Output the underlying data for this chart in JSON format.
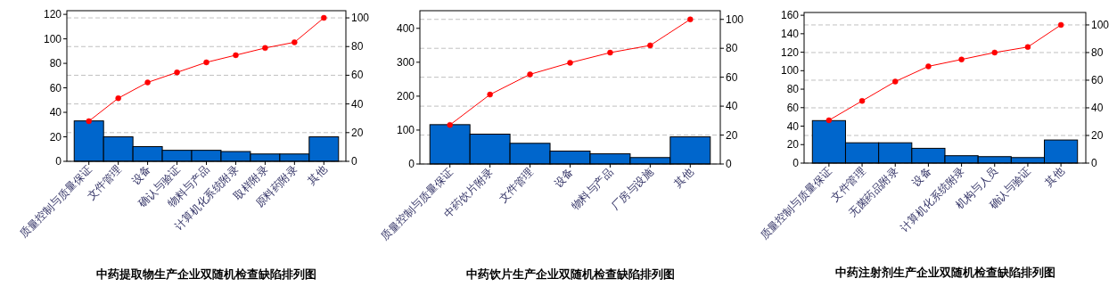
{
  "chart_data": [
    {
      "type": "bar",
      "title": "中药提取物生产企业双随机检查缺陷排列图",
      "categories": [
        "质量控制与质量保证",
        "文件管理",
        "设备",
        "确认与验证",
        "物料与产品",
        "计算机化系统附录",
        "取样附录",
        "原料药附录",
        "其他"
      ],
      "series": [
        {
          "color": "#0066cc",
          "values": [
            33,
            20,
            12,
            9,
            9,
            8,
            6,
            6,
            20
          ]
        },
        {
          "type": "line",
          "axis": "y2",
          "color": "#ff0000",
          "values": [
            28,
            44,
            55,
            62,
            69,
            74,
            79,
            83,
            100
          ]
        }
      ],
      "ylim": [
        0,
        123
      ],
      "yticks": [
        0,
        20,
        40,
        60,
        80,
        100,
        120
      ],
      "y2lim": [
        0,
        105
      ],
      "y2ticks": [
        0,
        20,
        40,
        60,
        80,
        100
      ],
      "grid": "y2",
      "marker": "circle",
      "line_style": "solid"
    },
    {
      "type": "bar",
      "title": "中药饮片生产企业双随机检查缺陷排列图",
      "categories": [
        "质量控制与质量保证",
        "中药饮片附录",
        "文件管理",
        "设备",
        "物料与产品",
        "厂房与设施",
        "其他"
      ],
      "series": [
        {
          "color": "#0066cc",
          "values": [
            116,
            88,
            61,
            38,
            30,
            19,
            80
          ]
        },
        {
          "type": "line",
          "axis": "y2",
          "color": "#ff0000",
          "values": [
            27,
            48,
            62,
            70,
            77,
            82,
            100
          ]
        }
      ],
      "ylim": [
        0,
        452
      ],
      "yticks": [
        0,
        100,
        200,
        300,
        400
      ],
      "y2lim": [
        0,
        106
      ],
      "y2ticks": [
        0,
        20,
        40,
        60,
        80,
        100
      ],
      "grid": "y2",
      "marker": "circle",
      "line_style": "solid"
    },
    {
      "type": "bar",
      "title": "中药注射剂生产企业双随机检查缺陷排列图",
      "categories": [
        "质量控制与质量保证",
        "文件管理",
        "无菌药品附录",
        "设备",
        "计算机化系统附录",
        "机构与人员",
        "确认与验证",
        "其他"
      ],
      "series": [
        {
          "color": "#0066cc",
          "values": [
            46,
            22,
            22,
            16,
            8,
            7,
            6,
            25
          ]
        },
        {
          "type": "line",
          "axis": "y2",
          "color": "#ff0000",
          "values": [
            31,
            45,
            59,
            70,
            75,
            80,
            84,
            100
          ]
        }
      ],
      "ylim": [
        0,
        163
      ],
      "yticks": [
        0,
        20,
        40,
        60,
        80,
        100,
        120,
        140,
        160
      ],
      "y2lim": [
        0,
        109
      ],
      "y2ticks": [
        0,
        20,
        40,
        60,
        80,
        100
      ],
      "grid": "y2",
      "marker": "circle",
      "line_style": "solid"
    }
  ]
}
